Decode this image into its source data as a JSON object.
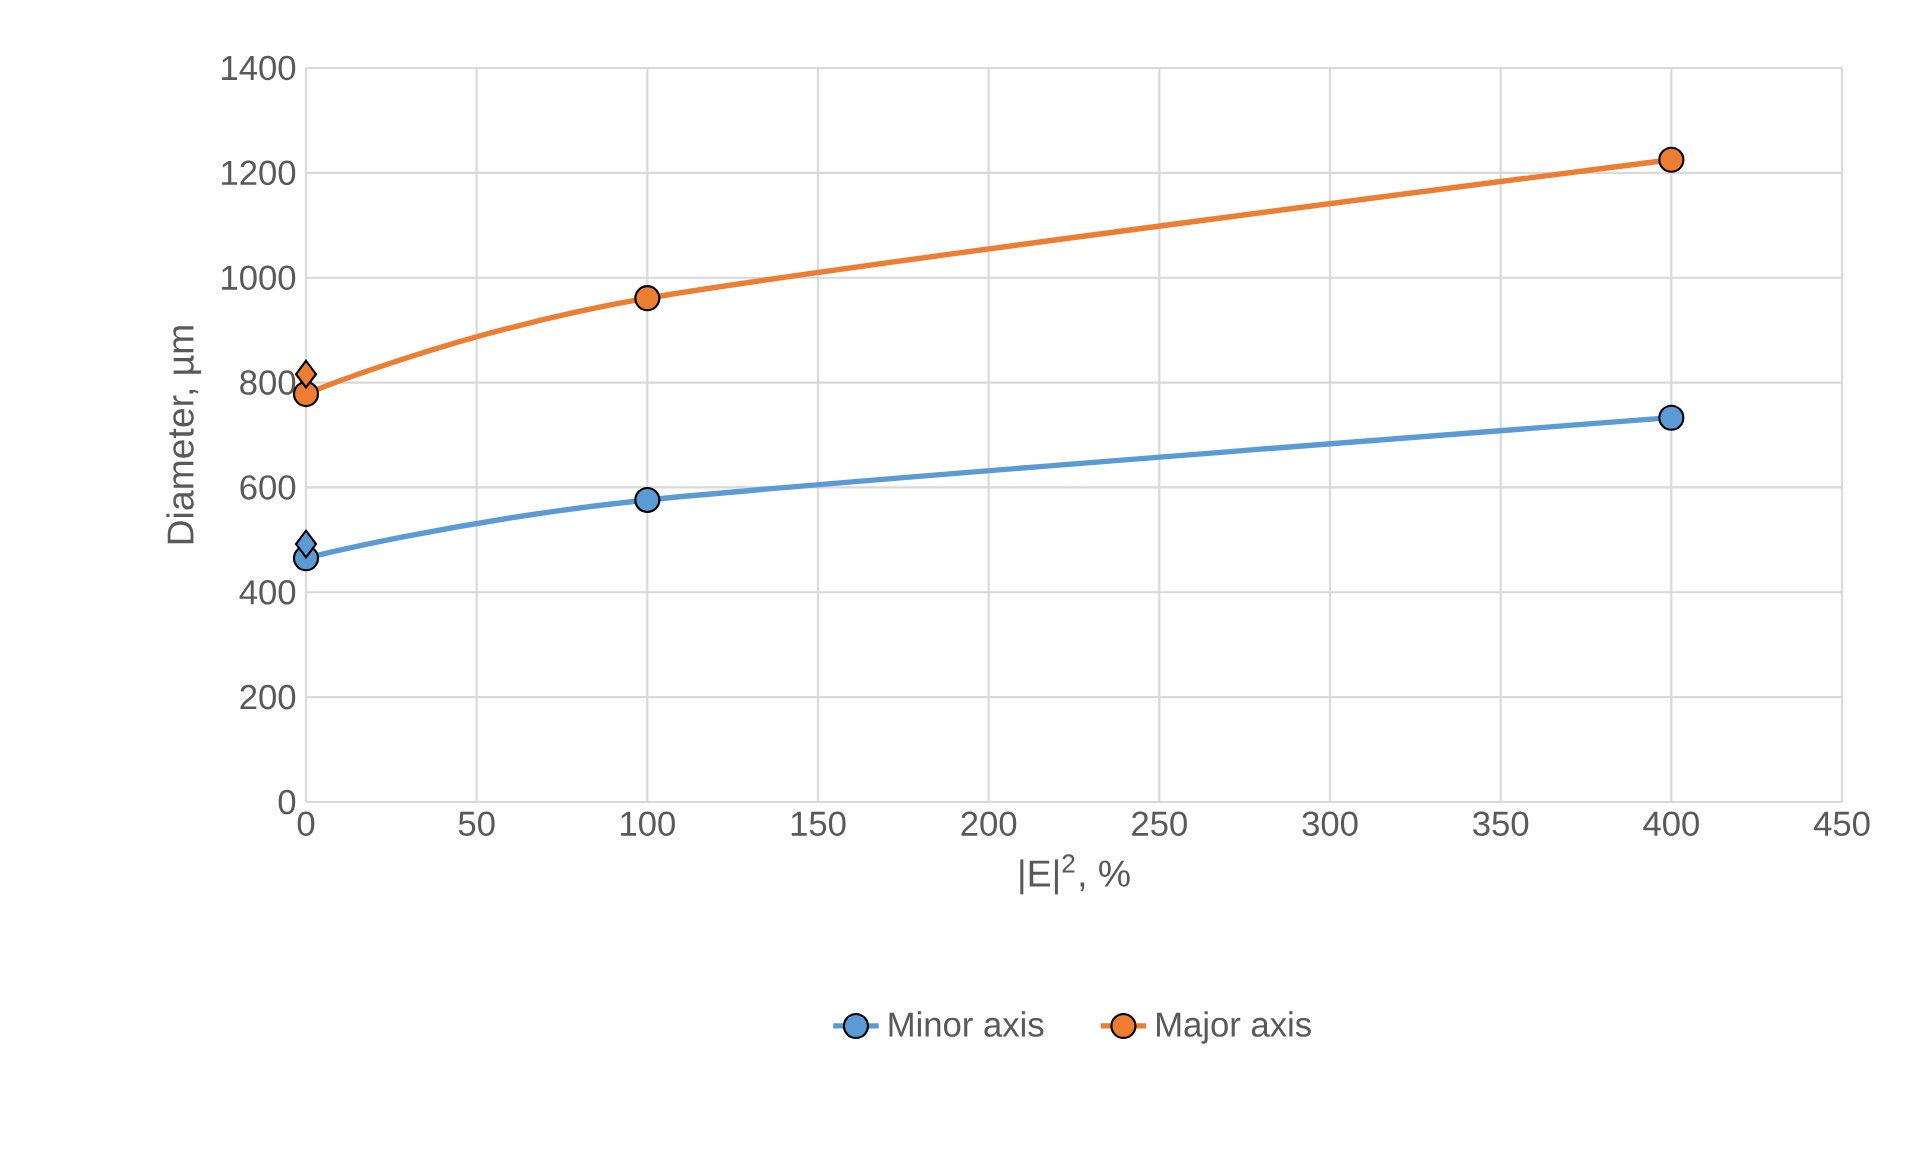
{
  "chart_data": {
    "type": "line",
    "xlabel": "|E|$^{2}$, %",
    "ylabel": "Diameter, µm",
    "xlim": [
      0,
      450
    ],
    "xticks": [
      0,
      50,
      100,
      150,
      200,
      250,
      300,
      350,
      400,
      450
    ],
    "ylim": [
      0,
      1400
    ],
    "yticks": [
      0,
      200,
      400,
      600,
      800,
      1000,
      1200,
      1400
    ],
    "grid": true,
    "legend": "bottom",
    "marker": "circle",
    "series": [
      {
        "name": "Minor axis",
        "color": "#5b9bd5",
        "x": [
          0,
          100,
          400
        ],
        "values": [
          465,
          576,
          733
        ]
      },
      {
        "name": "Major axis",
        "color": "#ed7d31",
        "x": [
          0,
          100,
          400
        ],
        "values": [
          778,
          961,
          1225
        ]
      },
      {
        "type": "scatter",
        "marker": "diamond",
        "color": "#5b9bd5",
        "x": [
          0
        ],
        "values": [
          492
        ]
      },
      {
        "type": "scatter",
        "marker": "diamond",
        "color": "#ed7d31",
        "x": [
          0
        ],
        "values": [
          816
        ]
      }
    ]
  }
}
